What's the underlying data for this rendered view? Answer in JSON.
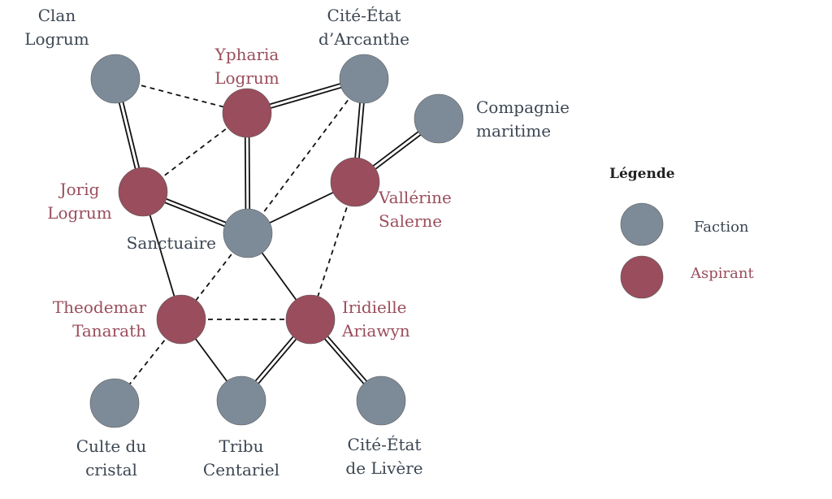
{
  "colors": {
    "faction": "#7d8b99",
    "aspirant": "#9a4d5c",
    "faction_text": "#3c4652",
    "aspirant_text": "#9a4d5c",
    "edge": "#111111"
  },
  "nodes": [
    {
      "id": "clan-logrum",
      "type": "faction",
      "lines": [
        "Clan",
        "Logrum"
      ]
    },
    {
      "id": "ypharia-logrum",
      "type": "aspirant",
      "lines": [
        "Ypharia",
        "Logrum"
      ]
    },
    {
      "id": "cite-etat-arcanthe",
      "type": "faction",
      "lines": [
        "Cité-État",
        "d’Arcanthe"
      ]
    },
    {
      "id": "compagnie-maritime",
      "type": "faction",
      "lines": [
        "Compagnie",
        "maritime"
      ]
    },
    {
      "id": "jorig-logrum",
      "type": "aspirant",
      "lines": [
        "Jorig",
        "Logrum"
      ]
    },
    {
      "id": "vallerine-salerne",
      "type": "aspirant",
      "lines": [
        "Vallérine",
        "Salerne"
      ]
    },
    {
      "id": "sanctuaire",
      "type": "faction",
      "lines": [
        "Sanctuaire"
      ]
    },
    {
      "id": "theodemar-tanarath",
      "type": "aspirant",
      "lines": [
        "Theodemar",
        "Tanarath"
      ]
    },
    {
      "id": "iridielle-ariawyn",
      "type": "aspirant",
      "lines": [
        "Iridielle",
        "Ariawyn"
      ]
    },
    {
      "id": "culte-du-cristal",
      "type": "faction",
      "lines": [
        "Culte du",
        "cristal"
      ]
    },
    {
      "id": "tribu-centariel",
      "type": "faction",
      "lines": [
        "Tribu",
        "Centariel"
      ]
    },
    {
      "id": "cite-etat-livere",
      "type": "faction",
      "lines": [
        "Cité-État",
        "de Livère"
      ]
    }
  ],
  "edges": [
    {
      "from": "clan-logrum",
      "to": "ypharia-logrum",
      "style": "dashed"
    },
    {
      "from": "clan-logrum",
      "to": "jorig-logrum",
      "style": "double"
    },
    {
      "from": "ypharia-logrum",
      "to": "cite-etat-arcanthe",
      "style": "double"
    },
    {
      "from": "ypharia-logrum",
      "to": "jorig-logrum",
      "style": "dashed"
    },
    {
      "from": "ypharia-logrum",
      "to": "sanctuaire",
      "style": "double"
    },
    {
      "from": "cite-etat-arcanthe",
      "to": "vallerine-salerne",
      "style": "double"
    },
    {
      "from": "cite-etat-arcanthe",
      "to": "sanctuaire",
      "style": "dashed"
    },
    {
      "from": "compagnie-maritime",
      "to": "vallerine-salerne",
      "style": "double"
    },
    {
      "from": "jorig-logrum",
      "to": "sanctuaire",
      "style": "double"
    },
    {
      "from": "jorig-logrum",
      "to": "theodemar-tanarath",
      "style": "solid"
    },
    {
      "from": "vallerine-salerne",
      "to": "sanctuaire",
      "style": "solid"
    },
    {
      "from": "vallerine-salerne",
      "to": "iridielle-ariawyn",
      "style": "dashed"
    },
    {
      "from": "sanctuaire",
      "to": "theodemar-tanarath",
      "style": "dashed"
    },
    {
      "from": "sanctuaire",
      "to": "iridielle-ariawyn",
      "style": "solid"
    },
    {
      "from": "theodemar-tanarath",
      "to": "iridielle-ariawyn",
      "style": "dashed"
    },
    {
      "from": "theodemar-tanarath",
      "to": "culte-du-cristal",
      "style": "dashed"
    },
    {
      "from": "theodemar-tanarath",
      "to": "tribu-centariel",
      "style": "solid"
    },
    {
      "from": "iridielle-ariawyn",
      "to": "tribu-centariel",
      "style": "double"
    },
    {
      "from": "iridielle-ariawyn",
      "to": "cite-etat-livere",
      "style": "double"
    }
  ],
  "legend": {
    "title": "Légende",
    "items": [
      {
        "type": "faction",
        "label": "Faction"
      },
      {
        "type": "aspirant",
        "label": "Aspirant"
      }
    ]
  }
}
